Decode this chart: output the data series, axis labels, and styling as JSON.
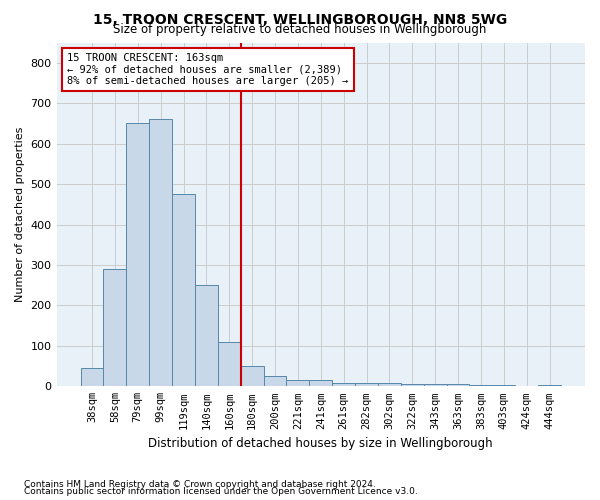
{
  "title1": "15, TROON CRESCENT, WELLINGBOROUGH, NN8 5WG",
  "title2": "Size of property relative to detached houses in Wellingborough",
  "xlabel": "Distribution of detached houses by size in Wellingborough",
  "ylabel": "Number of detached properties",
  "footnote1": "Contains HM Land Registry data © Crown copyright and database right 2024.",
  "footnote2": "Contains public sector information licensed under the Open Government Licence v3.0.",
  "annotation_line1": "15 TROON CRESCENT: 163sqm",
  "annotation_line2": "← 92% of detached houses are smaller (2,389)",
  "annotation_line3": "8% of semi-detached houses are larger (205) →",
  "bar_labels": [
    "38sqm",
    "58sqm",
    "79sqm",
    "99sqm",
    "119sqm",
    "140sqm",
    "160sqm",
    "180sqm",
    "200sqm",
    "221sqm",
    "241sqm",
    "261sqm",
    "282sqm",
    "302sqm",
    "322sqm",
    "343sqm",
    "363sqm",
    "383sqm",
    "403sqm",
    "424sqm",
    "444sqm"
  ],
  "bar_values": [
    45,
    290,
    650,
    660,
    475,
    250,
    110,
    50,
    25,
    15,
    15,
    8,
    8,
    7,
    5,
    5,
    5,
    3,
    2,
    1,
    3
  ],
  "bar_color": "#c8d8e8",
  "bar_edge_color": "#5588aa",
  "vline_x": 6.5,
  "vline_color": "#cc0000",
  "annotation_box_color": "#cc0000",
  "background_color": "#ffffff",
  "grid_color": "#cccccc",
  "ylim": [
    0,
    850
  ],
  "yticks": [
    0,
    100,
    200,
    300,
    400,
    500,
    600,
    700,
    800
  ]
}
